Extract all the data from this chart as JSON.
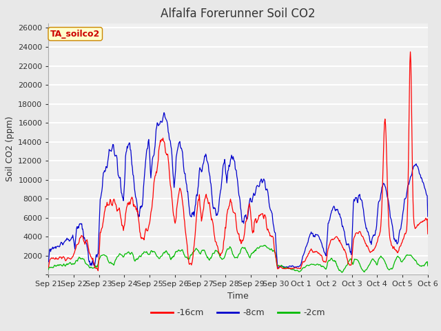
{
  "title": "Alfalfa Forerunner Soil CO2",
  "ylabel": "Soil CO2 (ppm)",
  "xlabel": "Time",
  "box_label": "TA_soilco2",
  "legend_labels": [
    "-16cm",
    "-8cm",
    "-2cm"
  ],
  "legend_colors": [
    "#ff0000",
    "#0000cc",
    "#00bb00"
  ],
  "line_colors": [
    "#ff0000",
    "#0000cc",
    "#00bb00"
  ],
  "background_color": "#e8e8e8",
  "plot_bg_color": "#f0f0f0",
  "grid_color": "#ffffff",
  "ylim": [
    0,
    26500
  ],
  "yticks": [
    0,
    2000,
    4000,
    6000,
    8000,
    10000,
    12000,
    14000,
    16000,
    18000,
    20000,
    22000,
    24000,
    26000
  ],
  "xtick_labels": [
    "Sep 21",
    "Sep 22",
    "Sep 23",
    "Sep 24",
    "Sep 25",
    "Sep 26",
    "Sep 27",
    "Sep 28",
    "Sep 29",
    "Sep 30",
    "Oct 1",
    "Oct 2",
    "Oct 3",
    "Oct 4",
    "Oct 5",
    "Oct 6"
  ],
  "title_fontsize": 12,
  "axis_label_fontsize": 9,
  "tick_fontsize": 8
}
